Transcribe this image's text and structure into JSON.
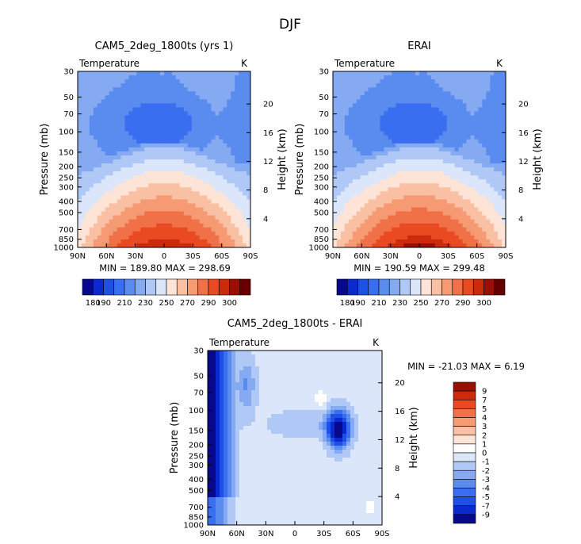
{
  "figure_title": "DJF",
  "chart_data": [
    {
      "type": "heatmap",
      "id": "model",
      "title": "CAM5_2deg_1800ts (yrs 1)",
      "variable": "Temperature",
      "units": "K",
      "ylabel": "Pressure (mb)",
      "ylabel_right": "Height (km)",
      "x_ticks": [
        "90N",
        "60N",
        "30N",
        "0",
        "30S",
        "60S",
        "90S"
      ],
      "y_ticks": [
        30,
        50,
        70,
        100,
        150,
        200,
        250,
        300,
        400,
        500,
        700,
        850,
        1000
      ],
      "height_ticks": [
        20,
        16,
        12,
        8,
        4
      ],
      "ylim": [
        30,
        1000
      ],
      "stats": "MIN = 189.80   MAX = 298.69",
      "min": 189.8,
      "max": 298.69,
      "colorbar_labels": [
        "180",
        "190",
        "210",
        "230",
        "250",
        "270",
        "290",
        "300"
      ],
      "colorbar_levels": [
        180,
        185,
        190,
        200,
        210,
        220,
        230,
        240,
        250,
        260,
        270,
        280,
        290,
        295,
        300
      ]
    },
    {
      "type": "heatmap",
      "id": "obs",
      "title": "ERAI",
      "variable": "Temperature",
      "units": "K",
      "ylabel": "Pressure (mb)",
      "ylabel_right": "Height (km)",
      "x_ticks": [
        "90N",
        "60N",
        "30N",
        "0",
        "30S",
        "60S",
        "90S"
      ],
      "y_ticks": [
        30,
        50,
        70,
        100,
        150,
        200,
        250,
        300,
        400,
        500,
        700,
        850,
        1000
      ],
      "height_ticks": [
        20,
        16,
        12,
        8,
        4
      ],
      "ylim": [
        30,
        1000
      ],
      "stats": "MIN = 190.59   MAX = 299.48",
      "min": 190.59,
      "max": 299.48,
      "colorbar_labels": [
        "180",
        "190",
        "210",
        "230",
        "250",
        "270",
        "290",
        "300"
      ],
      "colorbar_levels": [
        180,
        185,
        190,
        200,
        210,
        220,
        230,
        240,
        250,
        260,
        270,
        280,
        290,
        295,
        300
      ]
    },
    {
      "type": "heatmap",
      "id": "diff",
      "title": "CAM5_2deg_1800ts - ERAI",
      "variable": "Temperature",
      "units": "K",
      "ylabel": "Pressure (mb)",
      "ylabel_right": "Height (km)",
      "x_ticks": [
        "90N",
        "60N",
        "30N",
        "0",
        "30S",
        "60S",
        "90S"
      ],
      "y_ticks": [
        30,
        50,
        70,
        100,
        150,
        200,
        250,
        300,
        400,
        500,
        700,
        850,
        1000
      ],
      "height_ticks": [
        20,
        16,
        12,
        8,
        4
      ],
      "ylim": [
        30,
        1000
      ],
      "stats": "MIN = -21.03   MAX =    6.19",
      "min": -21.03,
      "max": 6.19,
      "colorbar_labels": [
        "9",
        "7",
        "5",
        "4",
        "3",
        "2",
        "1",
        "0",
        "-1",
        "-2",
        "-3",
        "-4",
        "-5",
        "-7",
        "-9"
      ]
    }
  ],
  "colors": {
    "abs_scale": [
      "#08088c",
      "#0a2ad0",
      "#1e50e6",
      "#3a6ef0",
      "#5a8cf0",
      "#86aaf2",
      "#b0c8f6",
      "#dbe6fa",
      "#fde4d6",
      "#f9c0a4",
      "#f59a72",
      "#f07048",
      "#ea4a22",
      "#cc2a0c",
      "#9a0e06",
      "#660000"
    ],
    "diff_scale": [
      "#9a0e06",
      "#cc2a0c",
      "#ea4a22",
      "#f07048",
      "#f59a72",
      "#f9c0a4",
      "#fde4d6",
      "#ffffff",
      "#dbe6fa",
      "#b0c8f6",
      "#86aaf2",
      "#5a8cf0",
      "#3a6ef0",
      "#1e50e6",
      "#0a2ad0",
      "#08088c"
    ]
  }
}
